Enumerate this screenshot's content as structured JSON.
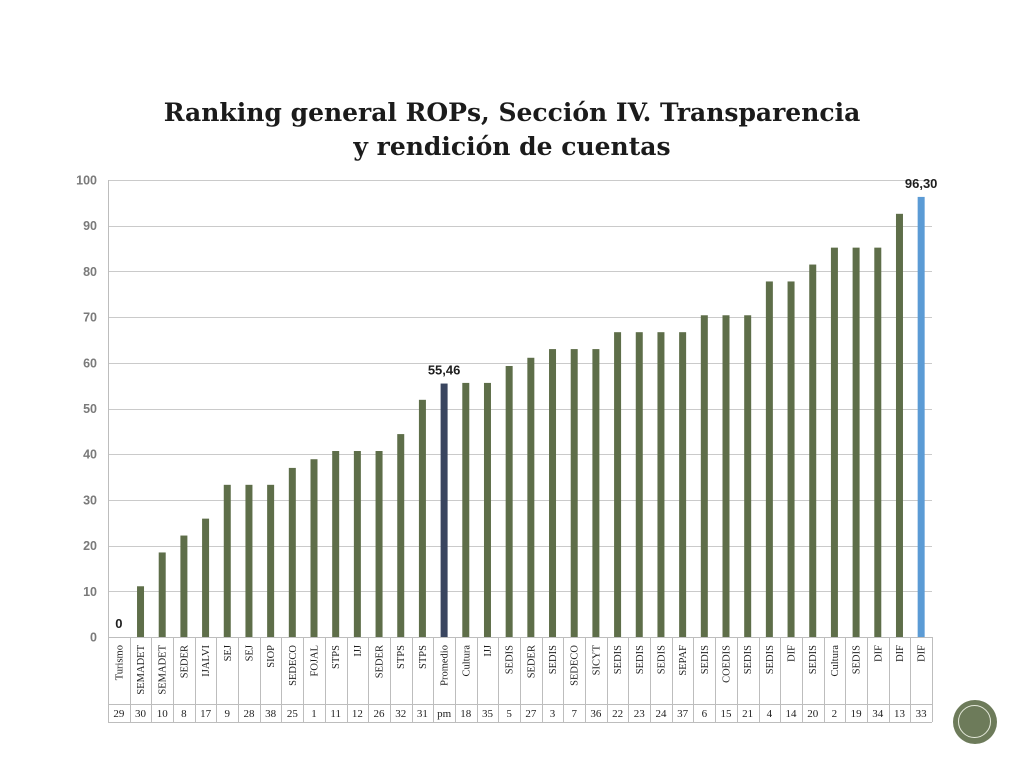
{
  "chart_data": {
    "type": "bar",
    "title": [
      "Ranking general ROPs, Sección IV. Transparencia",
      "y rendición de cuentas"
    ],
    "categories": [
      "Turismo",
      "SEMADET",
      "SEMADET",
      "SEDER",
      "IJALVI",
      "SEJ",
      "SEJ",
      "SIOP",
      "SEDECO",
      "FOJAL",
      "STPS",
      "IJJ",
      "SEDER",
      "STPS",
      "STPS",
      "Promedio",
      "Cultura",
      "IJJ",
      "SEDIS",
      "SEDER",
      "SEDIS",
      "SEDECO",
      "SICYT",
      "SEDIS",
      "SEDIS",
      "SEDIS",
      "SEPAF",
      "SEDIS",
      "COEDIS",
      "SEDIS",
      "SEDIS",
      "DIF",
      "SEDIS",
      "Cultura",
      "SEDIS",
      "DIF",
      "DIF",
      "DIF"
    ],
    "codes": [
      "29",
      "30",
      "10",
      "8",
      "17",
      "9",
      "28",
      "38",
      "25",
      "1",
      "11",
      "12",
      "26",
      "32",
      "31",
      "pm",
      "18",
      "35",
      "5",
      "27",
      "3",
      "7",
      "36",
      "22",
      "23",
      "24",
      "37",
      "6",
      "15",
      "21",
      "4",
      "14",
      "20",
      "2",
      "19",
      "34",
      "13",
      "33"
    ],
    "values": [
      0,
      11.1,
      18.5,
      22.2,
      25.9,
      33.3,
      33.3,
      33.3,
      37.0,
      38.9,
      40.7,
      40.7,
      40.7,
      44.4,
      51.9,
      55.46,
      55.6,
      55.6,
      59.3,
      61.1,
      63.0,
      63.0,
      63.0,
      66.7,
      66.7,
      66.7,
      66.7,
      70.4,
      70.4,
      70.4,
      77.8,
      77.8,
      81.5,
      85.2,
      85.2,
      85.2,
      92.6,
      96.3
    ],
    "data_labels": [
      {
        "index": 0,
        "text": "0"
      },
      {
        "index": 15,
        "text": "55,46"
      },
      {
        "index": 37,
        "text": "96,30"
      }
    ],
    "ylim": [
      0,
      100
    ],
    "yticks": [
      0,
      10,
      20,
      30,
      40,
      50,
      60,
      70,
      80,
      90,
      100
    ],
    "grid": true,
    "colors": {
      "bar": "#5e6e49",
      "average": "#39455f",
      "top": "#5b9bd5"
    },
    "highlight": {
      "15": "average",
      "37": "top"
    }
  },
  "nav_button": {
    "color": "#6d7b5a"
  }
}
